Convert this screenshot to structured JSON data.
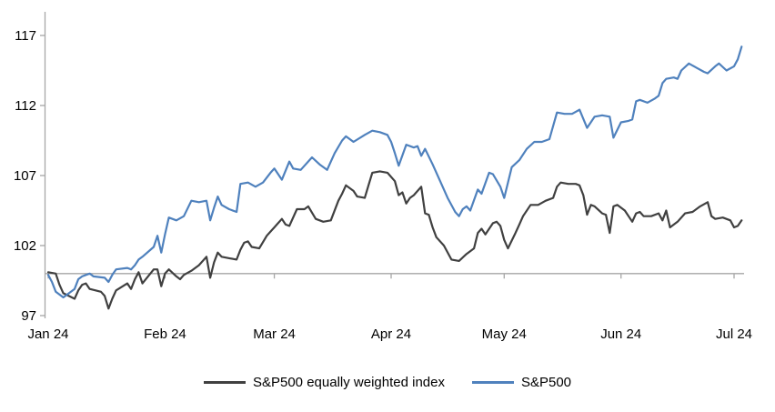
{
  "chart_data": {
    "type": "line",
    "x_axis": {
      "unit": "day_of_year_2024",
      "range_days": [
        1,
        186
      ],
      "months": [
        {
          "label": "Jan 24",
          "day": 1
        },
        {
          "label": "Feb 24",
          "day": 32
        },
        {
          "label": "Mar 24",
          "day": 61
        },
        {
          "label": "Apr 24",
          "day": 92
        },
        {
          "label": "May 24",
          "day": 122
        },
        {
          "label": "Jun 24",
          "day": 153
        },
        {
          "label": "Jul 24",
          "day": 183
        }
      ]
    },
    "y_axis": {
      "min": 97,
      "max": 117,
      "ticks": [
        97,
        102,
        107,
        112,
        117
      ],
      "baseline": 100
    },
    "grid": "off",
    "legend_position": "bottom-center",
    "colors": {
      "axis": "#a6a6a6",
      "baseline": "#a6a6a6",
      "text": "#000000"
    },
    "series": [
      {
        "name": "S&P500 equally weighted index",
        "color": "#404040",
        "points": [
          [
            1,
            100.1
          ],
          [
            3,
            100.0
          ],
          [
            4,
            99.2
          ],
          [
            5,
            98.6
          ],
          [
            8,
            98.2
          ],
          [
            9,
            98.8
          ],
          [
            10,
            99.2
          ],
          [
            11,
            99.3
          ],
          [
            12,
            98.9
          ],
          [
            15,
            98.7
          ],
          [
            16,
            98.4
          ],
          [
            17,
            97.5
          ],
          [
            18,
            98.2
          ],
          [
            19,
            98.8
          ],
          [
            22,
            99.3
          ],
          [
            23,
            98.9
          ],
          [
            24,
            99.6
          ],
          [
            25,
            100.1
          ],
          [
            26,
            99.3
          ],
          [
            29,
            100.3
          ],
          [
            30,
            100.3
          ],
          [
            31,
            99.1
          ],
          [
            32,
            100.0
          ],
          [
            33,
            100.3
          ],
          [
            35,
            99.8
          ],
          [
            36,
            99.6
          ],
          [
            37,
            99.9
          ],
          [
            39,
            100.2
          ],
          [
            41,
            100.6
          ],
          [
            43,
            101.2
          ],
          [
            44,
            99.7
          ],
          [
            45,
            100.8
          ],
          [
            46,
            101.5
          ],
          [
            47,
            101.2
          ],
          [
            49,
            101.1
          ],
          [
            51,
            101.0
          ],
          [
            52,
            101.7
          ],
          [
            53,
            102.2
          ],
          [
            54,
            102.3
          ],
          [
            55,
            101.9
          ],
          [
            57,
            101.8
          ],
          [
            59,
            102.7
          ],
          [
            60,
            103.0
          ],
          [
            61,
            103.3
          ],
          [
            62,
            103.6
          ],
          [
            63,
            103.9
          ],
          [
            64,
            103.5
          ],
          [
            65,
            103.4
          ],
          [
            67,
            104.6
          ],
          [
            69,
            104.6
          ],
          [
            70,
            104.8
          ],
          [
            72,
            103.9
          ],
          [
            74,
            103.7
          ],
          [
            76,
            103.8
          ],
          [
            78,
            105.2
          ],
          [
            79,
            105.7
          ],
          [
            80,
            106.3
          ],
          [
            82,
            105.9
          ],
          [
            83,
            105.5
          ],
          [
            85,
            105.4
          ],
          [
            86,
            106.3
          ],
          [
            87,
            107.2
          ],
          [
            89,
            107.3
          ],
          [
            91,
            107.2
          ],
          [
            93,
            106.6
          ],
          [
            94,
            105.6
          ],
          [
            95,
            105.8
          ],
          [
            96,
            105.0
          ],
          [
            97,
            105.4
          ],
          [
            98,
            105.6
          ],
          [
            100,
            106.2
          ],
          [
            101,
            104.3
          ],
          [
            102,
            104.2
          ],
          [
            103,
            103.3
          ],
          [
            104,
            102.6
          ],
          [
            106,
            102.0
          ],
          [
            108,
            101.0
          ],
          [
            110,
            100.9
          ],
          [
            112,
            101.4
          ],
          [
            114,
            101.8
          ],
          [
            115,
            102.9
          ],
          [
            116,
            103.2
          ],
          [
            117,
            102.8
          ],
          [
            119,
            103.6
          ],
          [
            120,
            103.7
          ],
          [
            121,
            103.4
          ],
          [
            122,
            102.4
          ],
          [
            123,
            101.8
          ],
          [
            125,
            102.9
          ],
          [
            126,
            103.5
          ],
          [
            127,
            104.1
          ],
          [
            129,
            104.9
          ],
          [
            131,
            104.9
          ],
          [
            133,
            105.2
          ],
          [
            135,
            105.4
          ],
          [
            136,
            106.2
          ],
          [
            137,
            106.5
          ],
          [
            139,
            106.4
          ],
          [
            141,
            106.4
          ],
          [
            142,
            106.3
          ],
          [
            143,
            105.6
          ],
          [
            144,
            104.2
          ],
          [
            145,
            104.9
          ],
          [
            146,
            104.8
          ],
          [
            148,
            104.3
          ],
          [
            149,
            104.2
          ],
          [
            150,
            102.9
          ],
          [
            151,
            104.8
          ],
          [
            152,
            104.9
          ],
          [
            154,
            104.5
          ],
          [
            156,
            103.7
          ],
          [
            157,
            104.3
          ],
          [
            158,
            104.4
          ],
          [
            159,
            104.1
          ],
          [
            161,
            104.1
          ],
          [
            163,
            104.3
          ],
          [
            164,
            103.8
          ],
          [
            165,
            104.5
          ],
          [
            166,
            103.3
          ],
          [
            168,
            103.7
          ],
          [
            170,
            104.3
          ],
          [
            172,
            104.4
          ],
          [
            174,
            104.8
          ],
          [
            176,
            105.1
          ],
          [
            177,
            104.1
          ],
          [
            178,
            103.9
          ],
          [
            180,
            104.0
          ],
          [
            182,
            103.8
          ],
          [
            183,
            103.3
          ],
          [
            184,
            103.4
          ],
          [
            185,
            103.8
          ]
        ]
      },
      {
        "name": "S&P500",
        "color": "#4f81bd",
        "points": [
          [
            1,
            99.9
          ],
          [
            2,
            99.4
          ],
          [
            3,
            98.7
          ],
          [
            5,
            98.3
          ],
          [
            8,
            98.9
          ],
          [
            9,
            99.6
          ],
          [
            10,
            99.8
          ],
          [
            11,
            99.9
          ],
          [
            12,
            100.0
          ],
          [
            13,
            99.8
          ],
          [
            16,
            99.7
          ],
          [
            17,
            99.4
          ],
          [
            18,
            99.9
          ],
          [
            19,
            100.3
          ],
          [
            22,
            100.4
          ],
          [
            23,
            100.3
          ],
          [
            24,
            100.6
          ],
          [
            25,
            101.0
          ],
          [
            26,
            101.2
          ],
          [
            29,
            101.9
          ],
          [
            30,
            102.7
          ],
          [
            31,
            101.5
          ],
          [
            32,
            102.8
          ],
          [
            33,
            104.0
          ],
          [
            35,
            103.8
          ],
          [
            37,
            104.1
          ],
          [
            39,
            105.2
          ],
          [
            41,
            105.1
          ],
          [
            43,
            105.2
          ],
          [
            44,
            103.8
          ],
          [
            45,
            104.7
          ],
          [
            46,
            105.5
          ],
          [
            47,
            104.9
          ],
          [
            49,
            104.6
          ],
          [
            51,
            104.4
          ],
          [
            52,
            106.4
          ],
          [
            54,
            106.5
          ],
          [
            56,
            106.2
          ],
          [
            58,
            106.5
          ],
          [
            60,
            107.2
          ],
          [
            61,
            107.5
          ],
          [
            63,
            106.7
          ],
          [
            65,
            108.0
          ],
          [
            66,
            107.5
          ],
          [
            68,
            107.4
          ],
          [
            71,
            108.3
          ],
          [
            73,
            107.8
          ],
          [
            75,
            107.4
          ],
          [
            77,
            108.6
          ],
          [
            79,
            109.5
          ],
          [
            80,
            109.8
          ],
          [
            82,
            109.4
          ],
          [
            85,
            109.9
          ],
          [
            87,
            110.2
          ],
          [
            89,
            110.1
          ],
          [
            91,
            109.9
          ],
          [
            92,
            109.4
          ],
          [
            93,
            108.6
          ],
          [
            94,
            107.7
          ],
          [
            96,
            109.2
          ],
          [
            98,
            109.0
          ],
          [
            99,
            109.1
          ],
          [
            100,
            108.4
          ],
          [
            101,
            108.9
          ],
          [
            103,
            107.8
          ],
          [
            105,
            106.6
          ],
          [
            107,
            105.4
          ],
          [
            109,
            104.4
          ],
          [
            110,
            104.1
          ],
          [
            111,
            104.6
          ],
          [
            112,
            104.8
          ],
          [
            113,
            104.5
          ],
          [
            115,
            106.0
          ],
          [
            116,
            105.7
          ],
          [
            118,
            107.2
          ],
          [
            119,
            107.1
          ],
          [
            121,
            106.2
          ],
          [
            122,
            105.4
          ],
          [
            124,
            107.6
          ],
          [
            126,
            108.1
          ],
          [
            128,
            108.9
          ],
          [
            130,
            109.4
          ],
          [
            132,
            109.4
          ],
          [
            134,
            109.6
          ],
          [
            136,
            111.5
          ],
          [
            138,
            111.4
          ],
          [
            140,
            111.4
          ],
          [
            142,
            111.7
          ],
          [
            144,
            110.4
          ],
          [
            146,
            111.2
          ],
          [
            148,
            111.3
          ],
          [
            150,
            111.2
          ],
          [
            151,
            109.7
          ],
          [
            153,
            110.8
          ],
          [
            155,
            110.9
          ],
          [
            156,
            111.0
          ],
          [
            157,
            112.3
          ],
          [
            158,
            112.4
          ],
          [
            160,
            112.2
          ],
          [
            162,
            112.5
          ],
          [
            163,
            112.7
          ],
          [
            164,
            113.6
          ],
          [
            165,
            113.9
          ],
          [
            167,
            114.0
          ],
          [
            168,
            113.9
          ],
          [
            169,
            114.5
          ],
          [
            171,
            115.0
          ],
          [
            173,
            114.7
          ],
          [
            175,
            114.4
          ],
          [
            176,
            114.3
          ],
          [
            178,
            114.8
          ],
          [
            179,
            115.0
          ],
          [
            181,
            114.5
          ],
          [
            183,
            114.8
          ],
          [
            184,
            115.3
          ],
          [
            185,
            116.2
          ]
        ]
      }
    ]
  }
}
